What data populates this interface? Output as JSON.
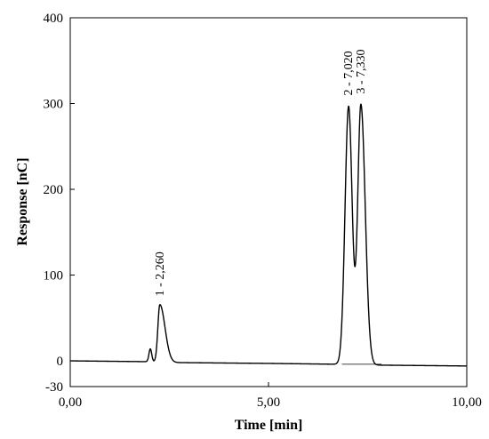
{
  "chart_data": {
    "type": "line",
    "title": "",
    "xlabel": "Time [min]",
    "ylabel": "Response [nC]",
    "xlim": [
      0,
      10
    ],
    "ylim": [
      -30,
      400
    ],
    "x_ticks": [
      {
        "value": 0,
        "label": "0,00"
      },
      {
        "value": 5,
        "label": "5,00"
      },
      {
        "value": 10,
        "label": "10,00"
      }
    ],
    "y_ticks": [
      {
        "value": 400,
        "label": "400"
      },
      {
        "value": 300,
        "label": "300"
      },
      {
        "value": 200,
        "label": "200"
      },
      {
        "value": 100,
        "label": "100"
      },
      {
        "value": 0,
        "label": "0"
      },
      {
        "value": -30,
        "label": "-30"
      }
    ],
    "grid": false,
    "series": [
      {
        "baseline": [
          [
            0,
            0
          ],
          [
            2.0,
            -1
          ],
          [
            2.6,
            -2
          ],
          [
            5.0,
            -3
          ],
          [
            6.8,
            -4
          ],
          [
            7.8,
            -5
          ],
          [
            10,
            -6
          ]
        ],
        "peaks": [
          {
            "rt": 2.02,
            "height": 15,
            "width_left": 0.035,
            "width_right": 0.035
          },
          {
            "rt": 2.26,
            "height": 67,
            "width_left": 0.05,
            "width_right": 0.13
          },
          {
            "rt": 7.02,
            "height": 301,
            "width_left": 0.09,
            "width_right": 0.09
          },
          {
            "rt": 7.33,
            "height": 303,
            "width_left": 0.08,
            "width_right": 0.11
          }
        ]
      }
    ],
    "peak_labels": [
      {
        "text": "1 - 2,260",
        "x": 2.26,
        "y": 67
      },
      {
        "text": "2 - 7,020",
        "x": 7.02,
        "y": 301
      },
      {
        "text": "3 - 7,330",
        "x": 7.33,
        "y": 303
      }
    ],
    "integration_baselines": [
      {
        "x": [
          6.85,
          7.85
        ],
        "y": [
          -4,
          -4
        ]
      }
    ]
  }
}
